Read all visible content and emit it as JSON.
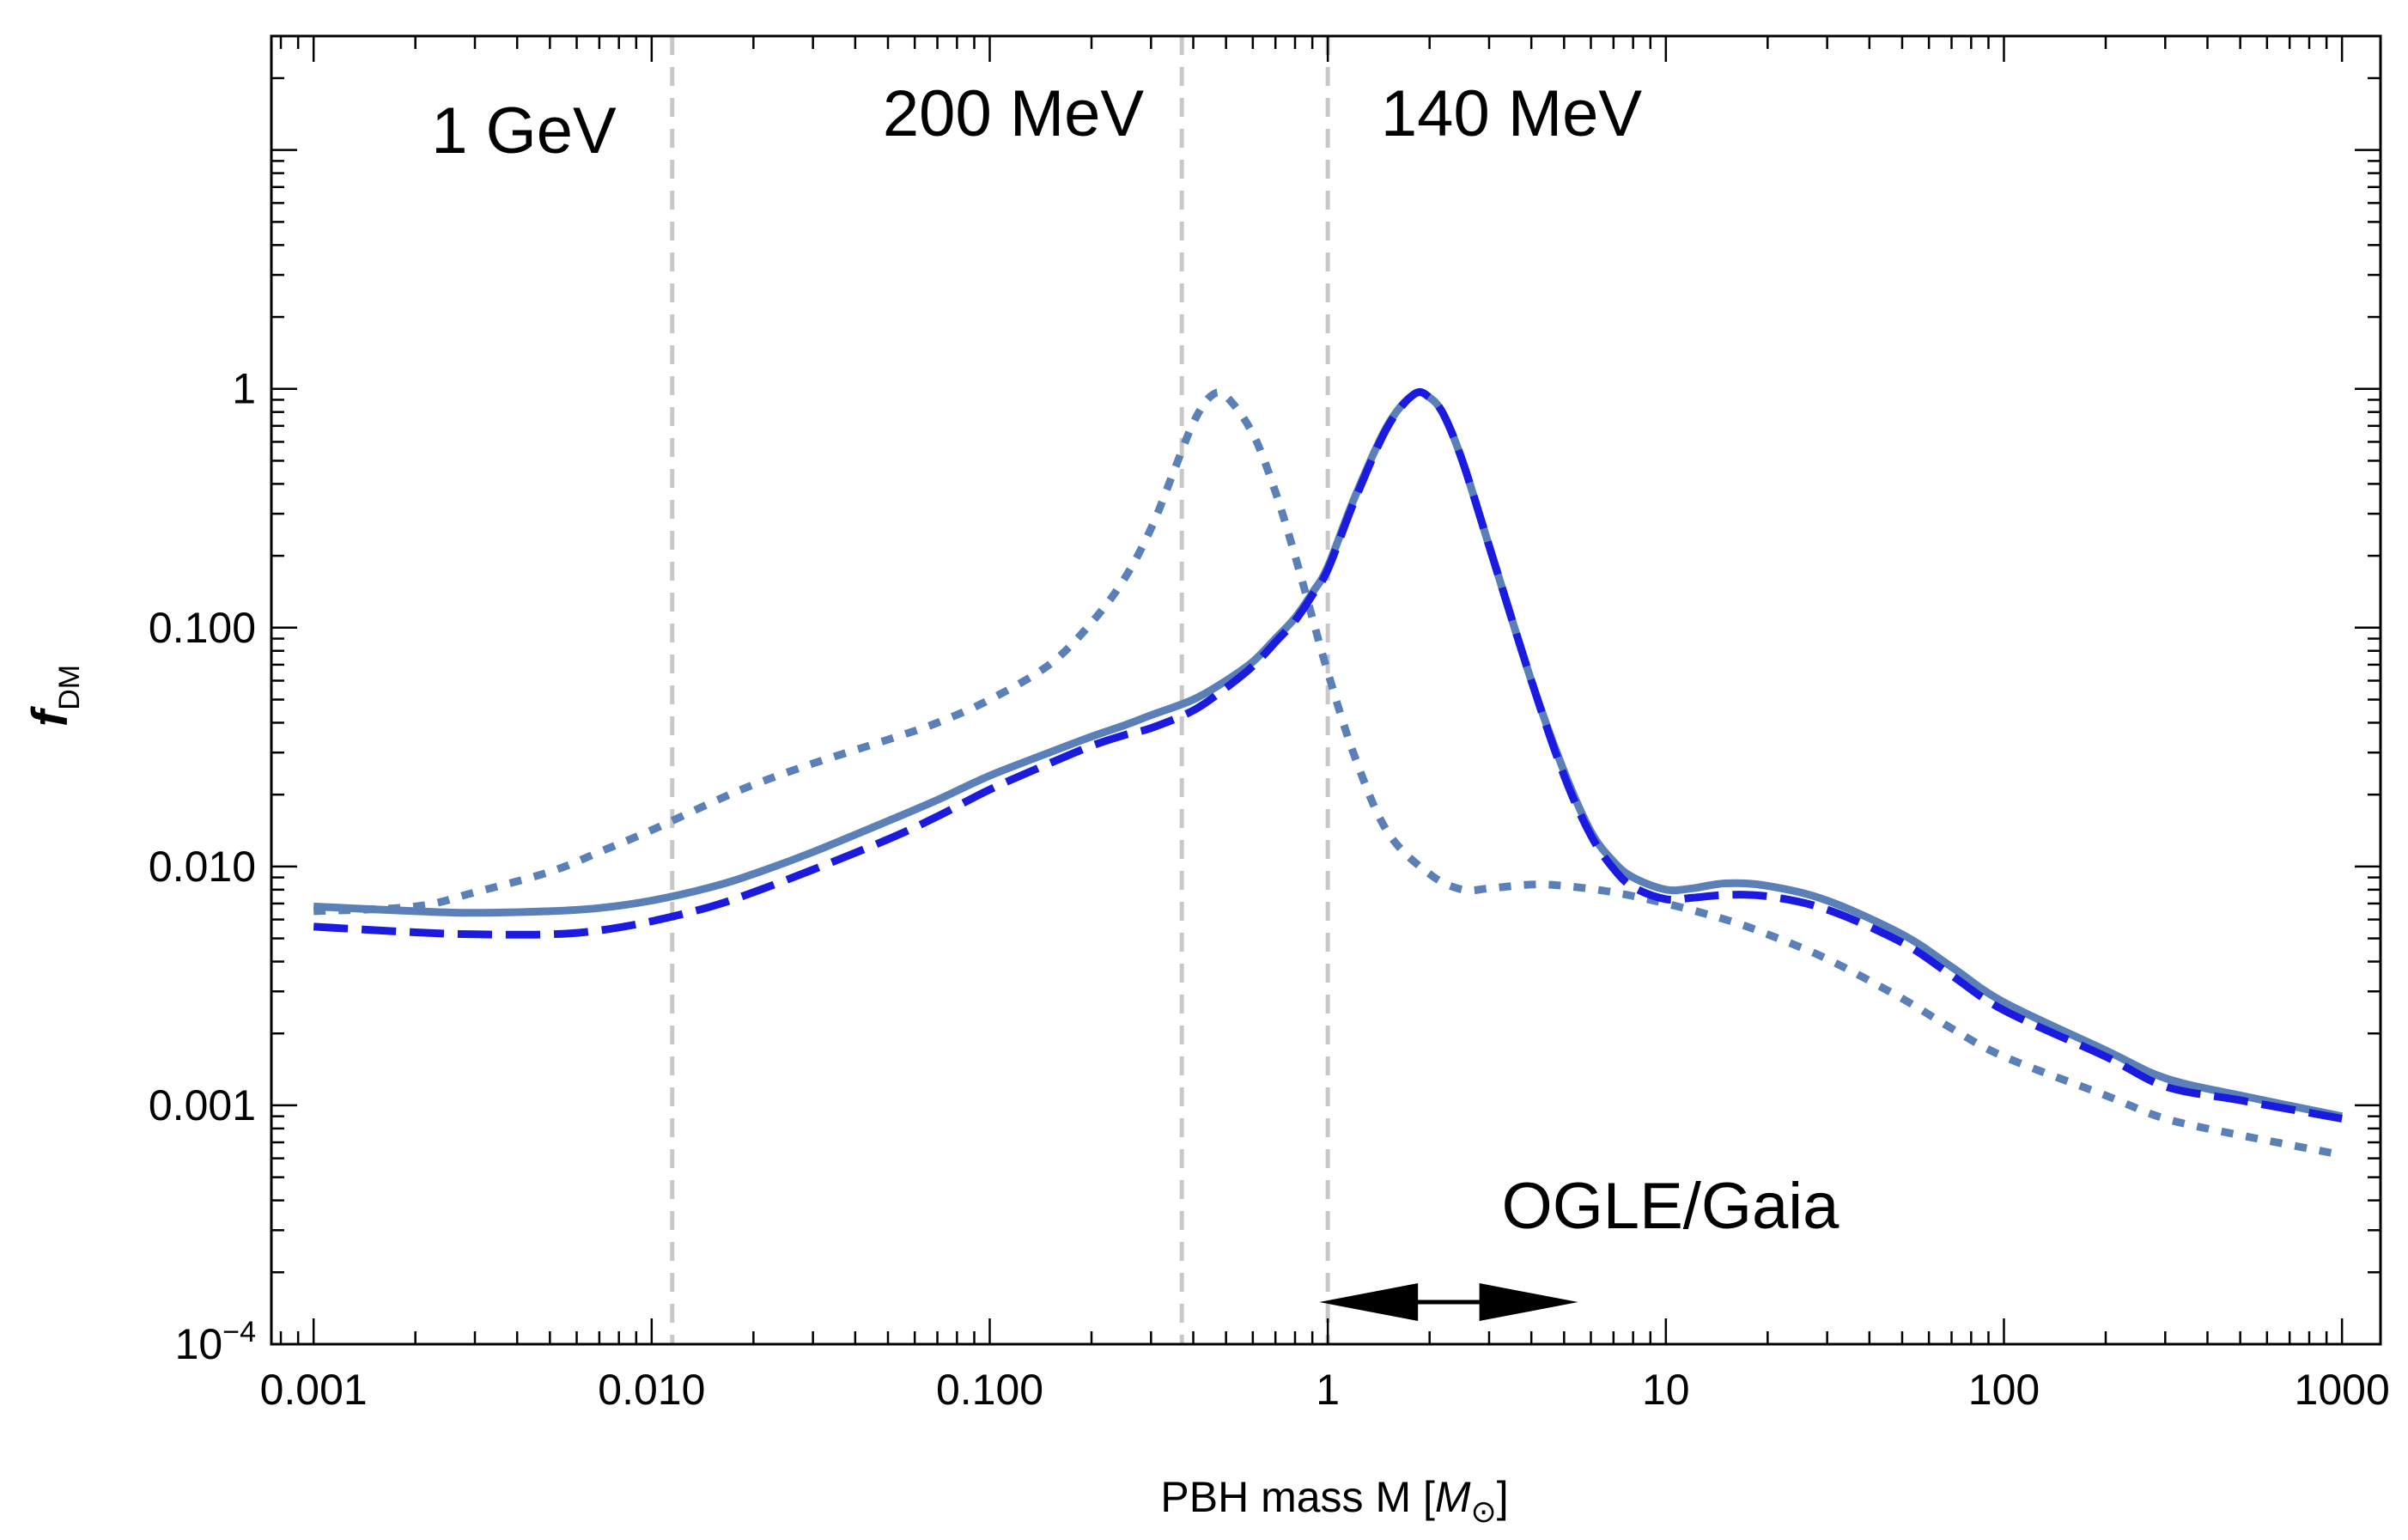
{
  "chart_data": {
    "type": "line",
    "title": "",
    "xlabel": "PBH mass M [",
    "xlabel_unit": "M",
    "xlabel_subscript": "⊙",
    "xlabel_close": "]",
    "ylabel": "f",
    "ylabel_subscript": "DM",
    "xscale": "log",
    "yscale": "log",
    "xlim": [
      0.00075,
      1300
    ],
    "ylim": [
      0.0001,
      30
    ],
    "x_ticks": [
      {
        "value": 0.001,
        "label": "0.001"
      },
      {
        "value": 0.01,
        "label": "0.010"
      },
      {
        "value": 0.1,
        "label": "0.100"
      },
      {
        "value": 1,
        "label": "1"
      },
      {
        "value": 10,
        "label": "10"
      },
      {
        "value": 100,
        "label": "100"
      },
      {
        "value": 1000,
        "label": "1000"
      }
    ],
    "y_ticks": [
      {
        "value": 0.0001,
        "label": "10",
        "sup": "−4"
      },
      {
        "value": 0.001,
        "label": "0.001",
        "sup": ""
      },
      {
        "value": 0.01,
        "label": "0.010",
        "sup": ""
      },
      {
        "value": 0.1,
        "label": "0.100",
        "sup": ""
      },
      {
        "value": 1,
        "label": "1",
        "sup": ""
      }
    ],
    "series": [
      {
        "name": "solid",
        "color": "#5b80b8",
        "style": "solid",
        "x": [
          0.001,
          0.002,
          0.003,
          0.005,
          0.007,
          0.01,
          0.015,
          0.02,
          0.03,
          0.05,
          0.07,
          0.1,
          0.15,
          0.2,
          0.25,
          0.3,
          0.4,
          0.5,
          0.6,
          0.7,
          0.8,
          0.9,
          1.0,
          1.2,
          1.5,
          1.8,
          2.0,
          2.2,
          2.5,
          3.0,
          4.0,
          5.0,
          6.0,
          7.0,
          8.0,
          10.0,
          12.0,
          15.0,
          20.0,
          30.0,
          50.0,
          70.0,
          100.0,
          200.0,
          300.0,
          500.0,
          1000.0
        ],
        "values": [
          0.0068,
          0.0065,
          0.0064,
          0.0065,
          0.0067,
          0.0072,
          0.0082,
          0.0093,
          0.0115,
          0.0155,
          0.019,
          0.024,
          0.03,
          0.035,
          0.039,
          0.043,
          0.05,
          0.06,
          0.072,
          0.09,
          0.11,
          0.14,
          0.18,
          0.35,
          0.7,
          0.95,
          0.92,
          0.78,
          0.5,
          0.22,
          0.06,
          0.025,
          0.014,
          0.0105,
          0.009,
          0.008,
          0.0081,
          0.0085,
          0.0083,
          0.0072,
          0.0052,
          0.0038,
          0.0027,
          0.0017,
          0.0013,
          0.0011,
          0.0009
        ]
      },
      {
        "name": "dashed",
        "color": "#1a1ae0",
        "style": "dashed",
        "x": [
          0.001,
          0.002,
          0.003,
          0.005,
          0.007,
          0.01,
          0.015,
          0.02,
          0.03,
          0.05,
          0.07,
          0.1,
          0.15,
          0.2,
          0.25,
          0.3,
          0.4,
          0.5,
          0.6,
          0.7,
          0.8,
          0.9,
          1.0,
          1.2,
          1.5,
          1.8,
          2.0,
          2.2,
          2.5,
          3.0,
          4.0,
          5.0,
          6.0,
          7.0,
          8.0,
          10.0,
          12.0,
          15.0,
          20.0,
          30.0,
          50.0,
          70.0,
          100.0,
          200.0,
          300.0,
          500.0,
          1000.0
        ],
        "values": [
          0.0056,
          0.0053,
          0.0052,
          0.0052,
          0.0054,
          0.0059,
          0.0068,
          0.0078,
          0.0097,
          0.013,
          0.0162,
          0.021,
          0.027,
          0.032,
          0.0355,
          0.038,
          0.045,
          0.056,
          0.069,
          0.087,
          0.107,
          0.137,
          0.175,
          0.34,
          0.69,
          0.95,
          0.92,
          0.78,
          0.5,
          0.22,
          0.06,
          0.024,
          0.0135,
          0.0098,
          0.0082,
          0.0073,
          0.0074,
          0.0076,
          0.0075,
          0.0066,
          0.0048,
          0.0035,
          0.0025,
          0.0016,
          0.0012,
          0.00105,
          0.00088
        ]
      },
      {
        "name": "dotted",
        "color": "#5b80b8",
        "style": "dotted",
        "x": [
          0.001,
          0.002,
          0.003,
          0.005,
          0.007,
          0.01,
          0.015,
          0.02,
          0.03,
          0.05,
          0.07,
          0.1,
          0.15,
          0.2,
          0.25,
          0.3,
          0.35,
          0.4,
          0.45,
          0.5,
          0.6,
          0.7,
          0.8,
          0.9,
          1.0,
          1.2,
          1.5,
          2.0,
          2.5,
          3.0,
          4.0,
          5.0,
          7.0,
          10.0,
          15.0,
          20.0,
          30.0,
          50.0,
          70.0,
          100.0,
          200.0,
          300.0,
          500.0,
          1000.0
        ],
        "values": [
          0.0065,
          0.0068,
          0.0078,
          0.0095,
          0.0115,
          0.0142,
          0.0185,
          0.022,
          0.027,
          0.034,
          0.04,
          0.05,
          0.07,
          0.105,
          0.16,
          0.26,
          0.45,
          0.72,
          0.93,
          0.93,
          0.65,
          0.37,
          0.2,
          0.11,
          0.065,
          0.029,
          0.014,
          0.0093,
          0.008,
          0.0081,
          0.0084,
          0.0083,
          0.0078,
          0.007,
          0.006,
          0.0052,
          0.0041,
          0.0028,
          0.0021,
          0.0016,
          0.0011,
          0.00088,
          0.00075,
          0.00062
        ]
      }
    ],
    "vertical_lines": [
      {
        "x": 0.0115,
        "label": "1 GeV",
        "color": "#c8c8c8"
      },
      {
        "x": 0.37,
        "label": "200 MeV",
        "color": "#c8c8c8"
      },
      {
        "x": 1.0,
        "label": "140 MeV",
        "color": "#c8c8c8"
      }
    ],
    "range_annotation": {
      "label": "OGLE/Gaia",
      "x_from": 1.0,
      "x_to": 5.5,
      "y": 0.00015
    }
  }
}
